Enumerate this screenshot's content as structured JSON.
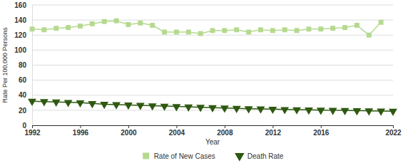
{
  "chart_data": {
    "type": "line",
    "x": [
      1992,
      1993,
      1994,
      1995,
      1996,
      1997,
      1998,
      1999,
      2000,
      2001,
      2002,
      2003,
      2004,
      2005,
      2006,
      2007,
      2008,
      2009,
      2010,
      2011,
      2012,
      2013,
      2014,
      2015,
      2016,
      2017,
      2018,
      2019,
      2020,
      2021,
      2022
    ],
    "series": [
      {
        "name": "Rate of New Cases",
        "color": "#b5d98f",
        "marker": "square",
        "line_style": "solid",
        "values": [
          128,
          127,
          129,
          130,
          132,
          135,
          138,
          139,
          134,
          136,
          133,
          124,
          124,
          124,
          122,
          126,
          126,
          127,
          124,
          127,
          126,
          127,
          126,
          128,
          128,
          129,
          130,
          133,
          120,
          137,
          null
        ]
      },
      {
        "name": "Death Rate",
        "color": "#2e5910",
        "marker": "triangle-down",
        "line_style": "solid",
        "values": [
          32,
          31.5,
          31,
          30.5,
          30,
          29,
          28,
          27.5,
          27,
          26.5,
          26,
          25.5,
          25,
          24.5,
          24,
          23.5,
          23,
          22.5,
          22,
          21.8,
          21.5,
          21,
          20.8,
          20.5,
          20.2,
          20,
          19.8,
          19.5,
          19.2,
          19,
          18.7
        ]
      }
    ],
    "x_label": "Year",
    "y_label": "Rate Per 100,000 Persons",
    "xlim": [
      1992,
      2022
    ],
    "xticks": [
      1992,
      1996,
      2000,
      2004,
      2008,
      2012,
      2016,
      2022
    ],
    "ylim": [
      0,
      160
    ],
    "yticks": [
      0,
      20,
      40,
      60,
      80,
      100,
      120,
      140,
      160
    ],
    "grid": true,
    "legend": "bottom"
  }
}
